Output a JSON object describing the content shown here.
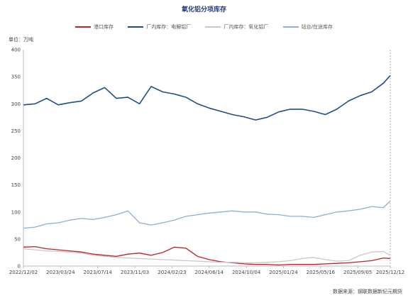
{
  "chart_data": {
    "type": "line",
    "title": "氧化铝分项库存",
    "ylabel": "单位：万吨",
    "ylim": [
      0,
      400
    ],
    "yticks": [
      0,
      50,
      100,
      150,
      200,
      250,
      300,
      350,
      400
    ],
    "xlim": [
      "2022-12-02",
      "2025-12-12"
    ],
    "xticks": [
      "2022/12/02",
      "2023/03/24",
      "2023/07/14",
      "2023/11/03",
      "2024/02/23",
      "2024/06/14",
      "2024/10/04",
      "2025/01/24",
      "2025/05/16",
      "2025/09/05",
      "2025/12/12"
    ],
    "legend_position": "top-center",
    "grid": false,
    "series": [
      {
        "name": "港口库存",
        "color": "#c0202a",
        "x": [
          "2022-12-02",
          "2023-01-06",
          "2023-02-10",
          "2023-03-17",
          "2023-04-21",
          "2023-05-26",
          "2023-06-30",
          "2023-08-04",
          "2023-09-08",
          "2023-10-13",
          "2023-11-17",
          "2023-12-22",
          "2024-01-26",
          "2024-03-01",
          "2024-04-05",
          "2024-05-10",
          "2024-06-14",
          "2024-07-19",
          "2024-08-23",
          "2024-09-27",
          "2024-11-01",
          "2024-12-06",
          "2025-01-10",
          "2025-02-14",
          "2025-03-21",
          "2025-04-25",
          "2025-05-30",
          "2025-07-04",
          "2025-08-08",
          "2025-09-12",
          "2025-10-17",
          "2025-11-21",
          "2025-12-12"
        ],
        "y": [
          35,
          36,
          32,
          30,
          28,
          26,
          22,
          20,
          18,
          22,
          24,
          20,
          25,
          35,
          33,
          18,
          12,
          8,
          6,
          4,
          3,
          3,
          2,
          3,
          3,
          3,
          4,
          5,
          6,
          8,
          10,
          15,
          14
        ]
      },
      {
        "name": "厂内库存：电解铝厂",
        "color": "#1f4e8c",
        "x": [
          "2022-12-02",
          "2023-01-06",
          "2023-02-10",
          "2023-03-17",
          "2023-04-21",
          "2023-05-26",
          "2023-06-30",
          "2023-08-04",
          "2023-09-08",
          "2023-10-13",
          "2023-11-17",
          "2023-12-22",
          "2024-01-26",
          "2024-03-01",
          "2024-04-05",
          "2024-05-10",
          "2024-06-14",
          "2024-07-19",
          "2024-08-23",
          "2024-09-27",
          "2024-11-01",
          "2024-12-06",
          "2025-01-10",
          "2025-02-14",
          "2025-03-21",
          "2025-04-25",
          "2025-05-30",
          "2025-07-04",
          "2025-08-08",
          "2025-09-12",
          "2025-10-17",
          "2025-11-21",
          "2025-12-12"
        ],
        "y": [
          298,
          300,
          310,
          298,
          302,
          305,
          320,
          330,
          310,
          312,
          300,
          332,
          322,
          318,
          312,
          300,
          292,
          286,
          280,
          276,
          270,
          275,
          285,
          290,
          290,
          286,
          280,
          290,
          305,
          315,
          322,
          338,
          352
        ]
      },
      {
        "name": "厂内库存：氧化铝厂",
        "color": "#c8c8c8",
        "x": [
          "2022-12-02",
          "2023-01-06",
          "2023-02-10",
          "2023-03-17",
          "2023-04-21",
          "2023-05-26",
          "2023-06-30",
          "2023-08-04",
          "2023-09-08",
          "2023-10-13",
          "2023-11-17",
          "2023-12-22",
          "2024-01-26",
          "2024-03-01",
          "2024-04-05",
          "2024-05-10",
          "2024-06-14",
          "2024-07-19",
          "2024-08-23",
          "2024-09-27",
          "2024-11-01",
          "2024-12-06",
          "2025-01-10",
          "2025-02-14",
          "2025-03-21",
          "2025-04-25",
          "2025-05-30",
          "2025-07-04",
          "2025-08-08",
          "2025-09-12",
          "2025-10-17",
          "2025-11-21",
          "2025-12-12"
        ],
        "y": [
          32,
          30,
          28,
          27,
          26,
          24,
          20,
          18,
          16,
          15,
          14,
          13,
          12,
          11,
          10,
          9,
          8,
          7,
          7,
          6,
          6,
          7,
          8,
          10,
          14,
          16,
          12,
          9,
          10,
          20,
          26,
          27,
          20
        ]
      },
      {
        "name": "站台/在途库存",
        "color": "#8faed4",
        "x": [
          "2022-12-02",
          "2023-01-06",
          "2023-02-10",
          "2023-03-17",
          "2023-04-21",
          "2023-05-26",
          "2023-06-30",
          "2023-08-04",
          "2023-09-08",
          "2023-10-13",
          "2023-11-17",
          "2023-12-22",
          "2024-01-26",
          "2024-03-01",
          "2024-04-05",
          "2024-05-10",
          "2024-06-14",
          "2024-07-19",
          "2024-08-23",
          "2024-09-27",
          "2024-11-01",
          "2024-12-06",
          "2025-01-10",
          "2025-02-14",
          "2025-03-21",
          "2025-04-25",
          "2025-05-30",
          "2025-07-04",
          "2025-08-08",
          "2025-09-12",
          "2025-10-17",
          "2025-11-21",
          "2025-12-12"
        ],
        "y": [
          70,
          72,
          78,
          80,
          85,
          88,
          86,
          90,
          95,
          102,
          80,
          76,
          80,
          85,
          92,
          95,
          98,
          100,
          102,
          100,
          100,
          96,
          95,
          92,
          92,
          90,
          95,
          100,
          102,
          105,
          110,
          108,
          120
        ]
      }
    ]
  },
  "source": "数据来源：钢联数据新纪元期货"
}
